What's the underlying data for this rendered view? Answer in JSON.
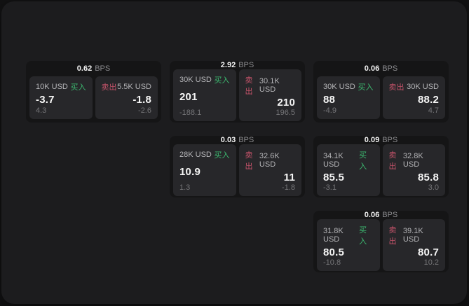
{
  "labels": {
    "bps_unit": "BPS",
    "buy": "买入",
    "sell": "卖出"
  },
  "colors": {
    "panel_bg": "#1c1c1e",
    "card_bg": "#151516",
    "tile_bg": "#27272a",
    "buy_green": "#3cba70",
    "sell_red": "#c5536a"
  },
  "cards": [
    {
      "bps": "0.62",
      "buy": {
        "amount": "10K USD",
        "value": "-3.7",
        "sub": "4.3"
      },
      "sell": {
        "amount": "5.5K USD",
        "value": "-1.8",
        "sub": "-2.6"
      }
    },
    {
      "bps": "2.92",
      "buy": {
        "amount": "30K USD",
        "value": "201",
        "sub": "-188.1"
      },
      "sell": {
        "amount": "30.1K USD",
        "value": "210",
        "sub": "196.5"
      }
    },
    {
      "bps": "0.06",
      "buy": {
        "amount": "30K USD",
        "value": "88",
        "sub": "-4.9"
      },
      "sell": {
        "amount": "30K USD",
        "value": "88.2",
        "sub": "4.7"
      }
    },
    {
      "bps": "0.03",
      "buy": {
        "amount": "28K USD",
        "value": "10.9",
        "sub": "1.3"
      },
      "sell": {
        "amount": "32.6K USD",
        "value": "11",
        "sub": "-1.8"
      }
    },
    {
      "bps": "0.09",
      "buy": {
        "amount": "34.1K USD",
        "value": "85.5",
        "sub": "-3.1"
      },
      "sell": {
        "amount": "32.8K USD",
        "value": "85.8",
        "sub": "3.0"
      }
    },
    {
      "bps": "0.06",
      "buy": {
        "amount": "31.8K USD",
        "value": "80.5",
        "sub": "-10.8"
      },
      "sell": {
        "amount": "39.1K USD",
        "value": "80.7",
        "sub": "10.2"
      }
    }
  ]
}
